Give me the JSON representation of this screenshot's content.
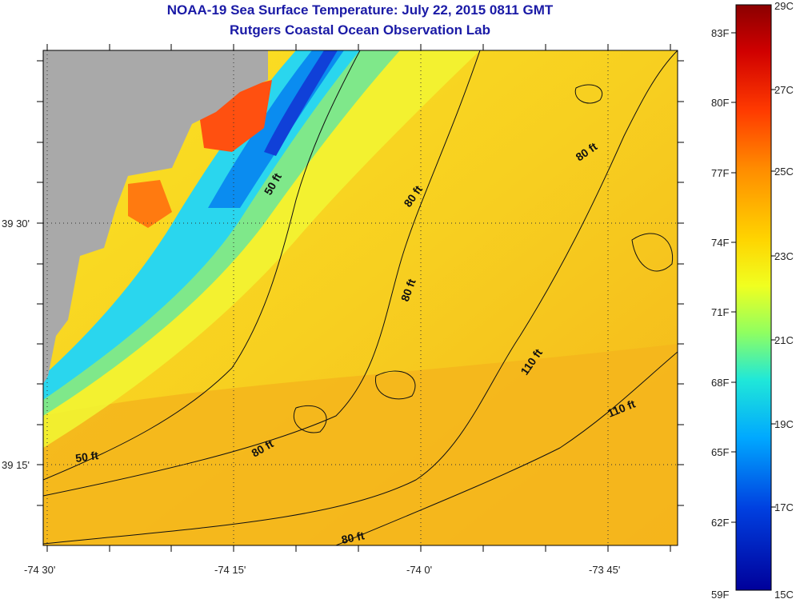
{
  "title": {
    "line1": "NOAA-19 Sea Surface Temperature:  July 22, 2015 0811 GMT",
    "line2": "Rutgers Coastal Ocean Observation Lab"
  },
  "axes": {
    "longitude_labels": [
      "-74 30'",
      "-74 15'",
      "-74 0'",
      "-73 45'"
    ],
    "latitude_labels": [
      "39 30'",
      "39 15'"
    ]
  },
  "contour_labels": {
    "c50_north": "50 ft",
    "c50_south": "50 ft",
    "c80_a": "80 ft",
    "c80_b": "80 ft",
    "c80_c": "80 ft",
    "c80_d": "80 ft",
    "c80_e": "80 ft",
    "c110_a": "110 ft",
    "c110_b": "110 ft"
  },
  "colorbar": {
    "fahrenheit": [
      "83F",
      "80F",
      "77F",
      "74F",
      "71F",
      "68F",
      "65F",
      "62F",
      "59F"
    ],
    "celsius": [
      "29C",
      "27C",
      "25C",
      "23C",
      "21C",
      "19C",
      "17C",
      "15C"
    ],
    "colors": [
      "#8b0000",
      "#d00000",
      "#ff3000",
      "#ff8000",
      "#ffd000",
      "#f0ff10",
      "#80ff60",
      "#10e8e0",
      "#00a0ff",
      "#0040e0",
      "#0000a0"
    ]
  },
  "colors": {
    "land": "#a9a9a9",
    "ocean_warm": "#f6b71c",
    "ocean_mid": "#f8e020",
    "title": "#1a1aa6"
  }
}
